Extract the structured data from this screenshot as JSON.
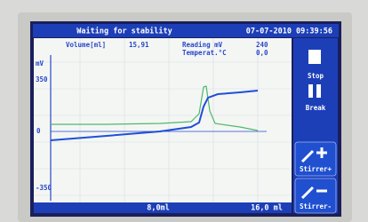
{
  "header": {
    "status": "Waiting for stability",
    "datetime": "07-07-2010 09:39:56"
  },
  "readout": {
    "volume_label": "Volume[ml]",
    "volume": "15,91",
    "reading_label": "Reading mV",
    "reading": "240",
    "temp_label": "Temperat.°C",
    "temp": "0,0"
  },
  "axis": {
    "unit": "mV",
    "ticks": [
      "350",
      "0",
      "-350"
    ],
    "x_labels": [
      "8,0ml",
      "16,0 ml"
    ]
  },
  "buttons": [
    "Stop",
    "Break",
    "Stirrer+",
    "Stirrer-"
  ]
}
